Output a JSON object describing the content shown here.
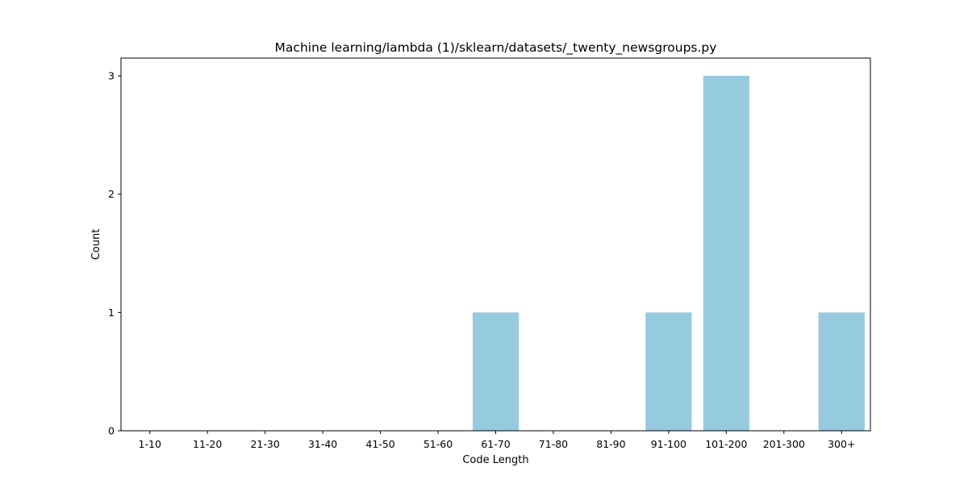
{
  "chart_data": {
    "type": "bar",
    "title": "Machine learning/lambda (1)/sklearn/datasets/_twenty_newsgroups.py",
    "xlabel": "Code Length",
    "ylabel": "Count",
    "categories": [
      "1-10",
      "11-20",
      "21-30",
      "31-40",
      "41-50",
      "51-60",
      "61-70",
      "71-80",
      "81-90",
      "91-100",
      "101-200",
      "201-300",
      "300+"
    ],
    "values": [
      0,
      0,
      0,
      0,
      0,
      0,
      1,
      0,
      0,
      1,
      3,
      0,
      1
    ],
    "ylim": [
      0,
      3.15
    ],
    "yticks": [
      0,
      1,
      2,
      3
    ],
    "grid": false,
    "bar_color": "#96cade"
  }
}
